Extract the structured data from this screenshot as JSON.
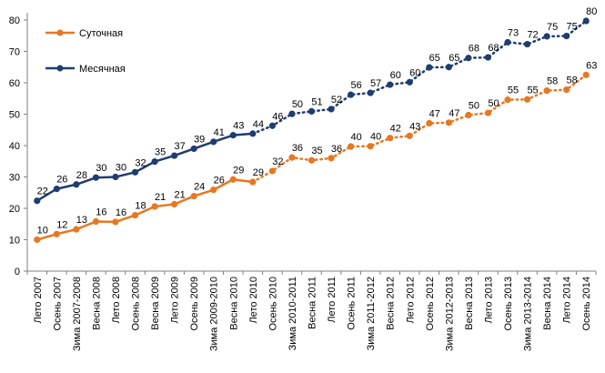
{
  "chart_data": {
    "type": "line",
    "title": "",
    "xlabel": "",
    "ylabel": "",
    "ylim": [
      0,
      80
    ],
    "yticks": [
      0,
      10,
      20,
      30,
      40,
      50,
      60,
      70,
      80
    ],
    "grid": false,
    "legend_position": "top-left",
    "solid_until_index": 11,
    "categories": [
      "Лето 2007",
      "Осень 2007",
      "Зима 2007-2008",
      "Весна 2008",
      "Лето 2008",
      "Осень 2008",
      "Весна 2009",
      "Лето 2009",
      "Осень 2009",
      "Зима 2009-2010",
      "Весна 2010",
      "Лето 2010",
      "Осень 2010",
      "Зима 2010-2011",
      "Весна 2011",
      "Лето 2011",
      "Осень 2011",
      "Зима 2011-2012",
      "Весна 2012",
      "Лето 2012",
      "Осень 2012",
      "Зима 2012-2013",
      "Весна 2013",
      "Лето 2013",
      "Осень 2013",
      "Зима 2013-2014",
      "Весна 2014",
      "Лето 2014",
      "Осень 2014"
    ],
    "series": [
      {
        "name": "Суточная",
        "color": "#E87722",
        "values": [
          10,
          12,
          13,
          16,
          16,
          18,
          21,
          21,
          24,
          26,
          29,
          29,
          32,
          36,
          35,
          36,
          40,
          40,
          42,
          43,
          47,
          47,
          50,
          50,
          55,
          55,
          58,
          58,
          63
        ],
        "point_values": [
          10,
          11.8,
          13.3,
          15.8,
          15.7,
          17.8,
          20.6,
          21.3,
          23.9,
          25.9,
          29.2,
          28.4,
          31.9,
          36.2,
          35.3,
          36.0,
          39.7,
          39.8,
          42.4,
          43.1,
          47.1,
          47.3,
          49.7,
          50.4,
          54.6,
          54.7,
          57.5,
          57.8,
          62.5
        ]
      },
      {
        "name": "Месячная",
        "color": "#1F3D6E",
        "values": [
          22,
          26,
          28,
          30,
          30,
          32,
          35,
          37,
          39,
          41,
          43,
          44,
          46,
          50,
          51,
          52,
          56,
          57,
          60,
          60,
          65,
          65,
          68,
          68,
          73,
          72,
          75,
          75,
          80
        ],
        "point_values": [
          22.4,
          26.2,
          27.6,
          29.8,
          30.0,
          31.5,
          34.9,
          36.8,
          39.0,
          41.2,
          43.3,
          43.8,
          46.3,
          50.1,
          50.9,
          51.6,
          56.2,
          56.8,
          59.4,
          60.2,
          64.9,
          65.0,
          67.9,
          68.1,
          72.9,
          72.3,
          74.8,
          74.9,
          79.7
        ]
      }
    ]
  }
}
